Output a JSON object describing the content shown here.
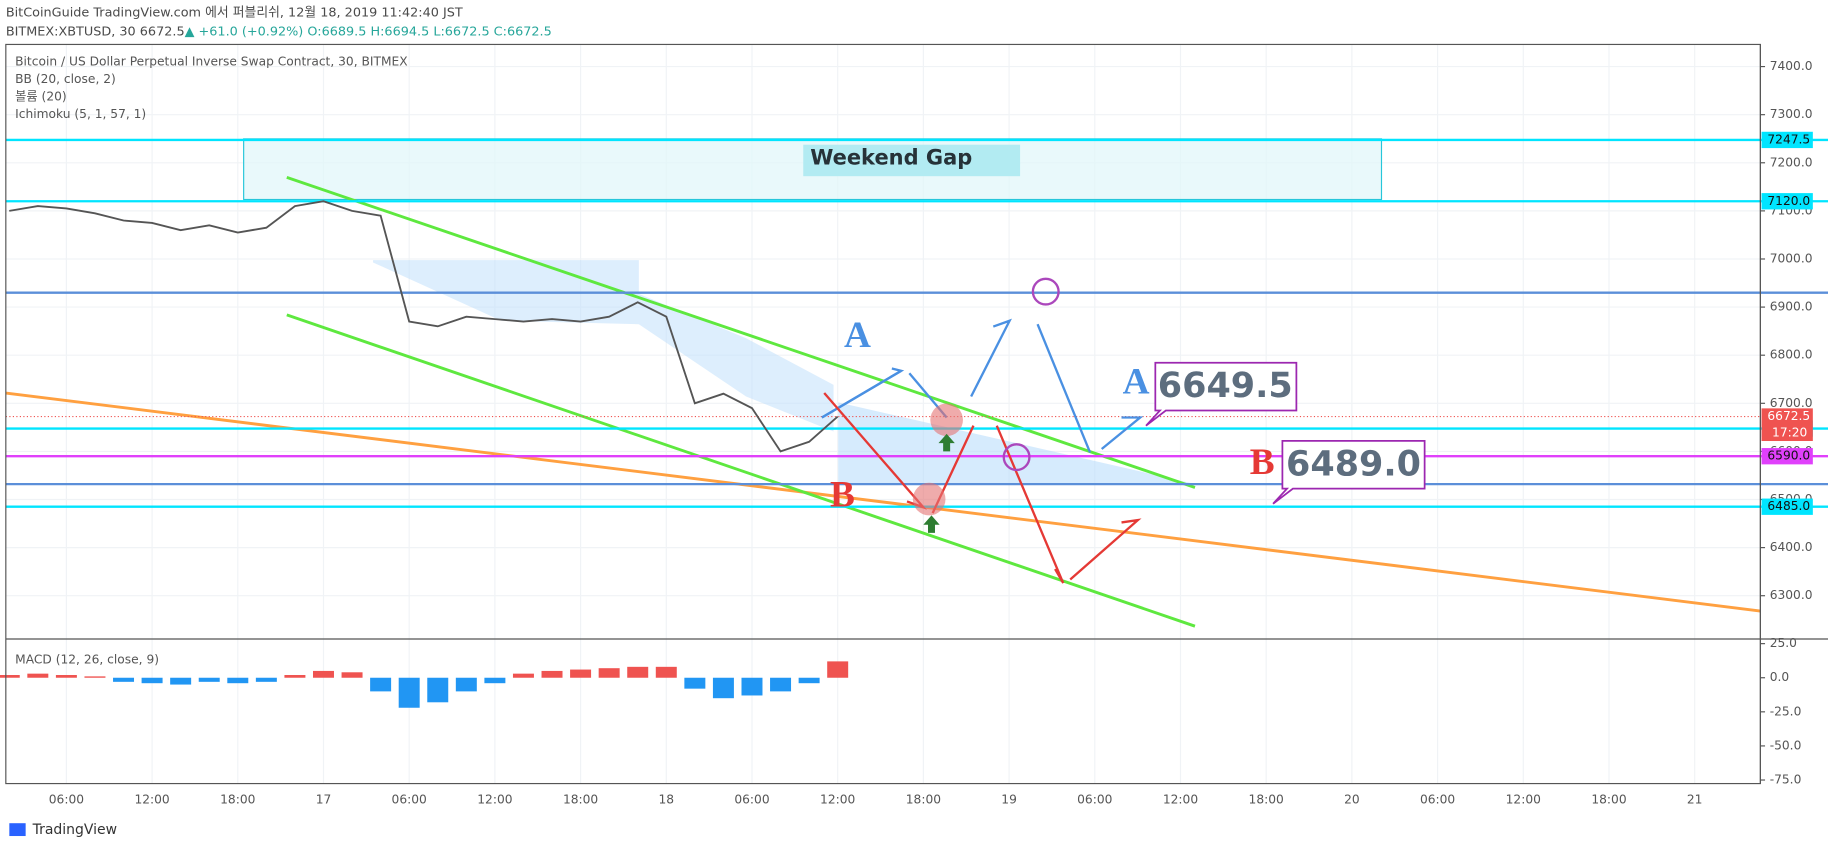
{
  "header": {
    "line1": "BitCoinGuide TradingView.com 에서 퍼블리쉬, 12월 18, 2019 11:42:40 JST",
    "symbol": "BITMEX:XBTUSD, 30",
    "last": "6672.5",
    "change": "▲ +61.0 (+0.92%)",
    "ohlc": "O:6689.5 H:6694.5 L:6672.5 C:6672.5"
  },
  "footer": "TradingView",
  "chart_data": [
    {
      "type": "line",
      "title": "Bitcoin / US Dollar Perpetual Inverse Swap Contract, 30, BITMEX",
      "indicators": [
        "BB (20, close, 2)",
        "볼륨 (20)",
        "Ichimoku (5, 1, 57, 1)"
      ],
      "color": "#555555",
      "x": [
        2,
        4,
        6,
        8,
        10,
        12,
        14,
        16,
        18,
        20,
        22,
        24,
        26,
        28,
        30,
        32,
        34,
        36,
        38,
        40,
        42,
        44,
        46,
        48,
        50,
        52,
        54,
        56,
        58,
        60
      ],
      "values": [
        7100,
        7110,
        7105,
        7095,
        7080,
        7075,
        7060,
        7070,
        7055,
        7065,
        7110,
        7120,
        7100,
        7090,
        6870,
        6860,
        6880,
        6875,
        6870,
        6875,
        6870,
        6880,
        6910,
        6880,
        6700,
        6720,
        6690,
        6600,
        6620,
        6672.5
      ],
      "xlim": [
        1.76,
        124.6
      ],
      "xticks": [
        {
          "value": 6,
          "label": "06:00"
        },
        {
          "value": 12,
          "label": "12:00"
        },
        {
          "value": 18,
          "label": "18:00"
        },
        {
          "value": 24,
          "label": "17"
        },
        {
          "value": 30,
          "label": "06:00"
        },
        {
          "value": 36,
          "label": "12:00"
        },
        {
          "value": 42,
          "label": "18:00"
        },
        {
          "value": 48,
          "label": "18"
        },
        {
          "value": 54,
          "label": "06:00"
        },
        {
          "value": 60,
          "label": "12:00"
        },
        {
          "value": 66,
          "label": "18:00"
        },
        {
          "value": 72,
          "label": "19"
        },
        {
          "value": 78,
          "label": "06:00"
        },
        {
          "value": 84,
          "label": "12:00"
        },
        {
          "value": 90,
          "label": "18:00"
        },
        {
          "value": 96,
          "label": "20"
        },
        {
          "value": 102,
          "label": "06:00"
        },
        {
          "value": 108,
          "label": "12:00"
        },
        {
          "value": 114,
          "label": "18:00"
        },
        {
          "value": 120,
          "label": "21"
        }
      ],
      "ylim": [
        6210,
        7446
      ],
      "yticks": [
        {
          "value": 6300,
          "label": "6300.0"
        },
        {
          "value": 6400,
          "label": "6400.0"
        },
        {
          "value": 6500,
          "label": "6500.0"
        },
        {
          "value": 6600,
          "label": "6600.0"
        },
        {
          "value": 6700,
          "label": "6700.0"
        },
        {
          "value": 6800,
          "label": "6800.0"
        },
        {
          "value": 6900,
          "label": "6900.0"
        },
        {
          "value": 7000,
          "label": "7000.0"
        },
        {
          "value": 7100,
          "label": "7100.0"
        },
        {
          "value": 7200,
          "label": "7200.0"
        },
        {
          "value": 7300,
          "label": "7300.0"
        },
        {
          "value": 7400,
          "label": "7400.0"
        }
      ],
      "grid": true,
      "levels": [
        {
          "value": 7247.5,
          "color": "#00e5ff",
          "labeled": true
        },
        {
          "value": 7120,
          "label": "7120.0",
          "color": "#00e5ff",
          "labeled": true
        },
        {
          "value": 6930,
          "color": "#5b8fd9",
          "labeled": false
        },
        {
          "value": 6647.5,
          "color": "#00e5ff",
          "labeled": true
        },
        {
          "value": 6590,
          "label": "6590.0",
          "color": "#e040fb",
          "labeled": true
        },
        {
          "value": 6532,
          "color": "#5b8fd9",
          "labeled": false
        },
        {
          "value": 6485,
          "label": "6485.0",
          "color": "#00e5ff",
          "labeled": true
        }
      ],
      "last_price": {
        "value": 6672.5,
        "countdown": "17:20",
        "color": "#ef5350"
      },
      "annotations": {
        "gap": "Weekend Gap",
        "target_a": "6649.5",
        "target_b": "6489.0",
        "a1": "A",
        "a2": "A",
        "b1": "B",
        "b2": "B"
      }
    },
    {
      "type": "bar",
      "title": "MACD (12, 26, close, 9)",
      "x": [
        2,
        4,
        6,
        8,
        10,
        12,
        14,
        16,
        18,
        20,
        22,
        24,
        26,
        28,
        30,
        32,
        34,
        36,
        38,
        40,
        42,
        44,
        46,
        48,
        50,
        52,
        54,
        56,
        58,
        60
      ],
      "values": [
        2,
        3,
        2,
        1,
        -3,
        -4,
        -5,
        -3,
        -4,
        -3,
        2,
        5,
        4,
        -10,
        -22,
        -18,
        -10,
        -4,
        3,
        5,
        6,
        7,
        8,
        8,
        -8,
        -15,
        -13,
        -10,
        -4,
        12
      ],
      "colors": {
        "positive": "#ef5350",
        "negative": "#2196f3"
      },
      "ylim": [
        -77.6,
        28.4
      ],
      "yticks": [
        {
          "value": 25,
          "label": "25.0"
        },
        {
          "value": 0,
          "label": "0.0"
        },
        {
          "value": -25,
          "label": "-25.0"
        },
        {
          "value": -50,
          "label": "-50.0"
        },
        {
          "value": -75,
          "label": "-75.0"
        }
      ]
    }
  ]
}
